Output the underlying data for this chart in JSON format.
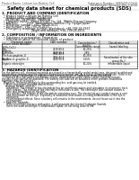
{
  "top_left_text": "Product Name: Lithium Ion Battery Cell",
  "top_right_line1": "Substance Number: SKKD40F-00610",
  "top_right_line2": "Established / Revision: Dec.7.2010",
  "title": "Safety data sheet for chemical products (SDS)",
  "section1_header": "1. PRODUCT AND COMPANY IDENTIFICATION",
  "section1_lines": [
    "  • Product name: Lithium Ion Battery Cell",
    "  • Product code: Cylindrical-type cell",
    "    SN1865A0, SN1865B0, SN1865A",
    "  • Company name:   Sanyo Electric Co., Ltd.  Mobile Energy Company",
    "  • Address:          2001  Kamiyashiro, Sumoto-City, Hyogo, Japan",
    "  • Telephone number:  +81-799-26-4111",
    "  • Fax number:  +81-799-26-4120",
    "  • Emergency telephone number (Weekdays): +81-799-26-3962",
    "                                 [Night and holidays]: +81-799-26-4101"
  ],
  "section2_header": "2. COMPOSITION / INFORMATION ON INGREDIENTS",
  "section2_sub": "  • Substance or preparation: Preparation",
  "section2_sub2": "  • Information about the chemical nature of product:",
  "table_col1_header": "Chemical name",
  "table_col2_header": "CAS number",
  "table_col3_header": "Concentration /\nConcentration range",
  "table_col4_header": "Classification and\nhazard labeling",
  "table_rows": [
    [
      "Lithium cobalt tantalate\n(LiMn₂CoO₂)",
      "-",
      "30-60%",
      "-"
    ],
    [
      "Iron",
      "7439-89-6",
      "10-25%",
      "-"
    ],
    [
      "Aluminum",
      "7429-90-5",
      "2-8%",
      "-"
    ],
    [
      "Graphite\n(Pitch as graphite-1)\n(Air-flow as graphite-1)",
      "7782-42-5\n7782-42-5",
      "10-25%",
      "-"
    ],
    [
      "Copper",
      "7440-50-8",
      "5-15%",
      "Sensitization of the skin\ngroup No.2"
    ],
    [
      "Organic electrolyte",
      "-",
      "10-20%",
      "Inflammable liquid"
    ]
  ],
  "section3_header": "3. HAZARDS IDENTIFICATION",
  "section3_para": [
    "For the battery cell, chemical materials are stored in a hermetically sealed metal case, designed to withstand",
    "temperature changes and mechanical shocks during normal use. As a result, during normal use, there is no",
    "physical danger of ignition or explosion and thermal danger of hazardous materials leakage.",
    "  If exposed to a fire, added mechanical shocks, decomposed, under electric short-circuit by misuse,",
    "the gas inside can/not be operated. The battery cell case will be breached of the portions, hazardous",
    "materials may be released.",
    "  Moreover, if heated strongly by the surrounding fire, acid gas may be emitted."
  ],
  "section3_bullet1": "  • Most important hazard and effects:",
  "section3_human": "    Human health effects:",
  "section3_human_lines": [
    "      Inhalation: The release of the electrolyte has an anesthesia action and stimulates in respiratory tract.",
    "      Skin contact: The release of the electrolyte stimulates a skin. The electrolyte skin contact causes a",
    "      sore and stimulation on the skin.",
    "      Eye contact: The release of the electrolyte stimulates eyes. The electrolyte eye contact causes a sore",
    "      and stimulation on the eye. Especially, a substance that causes a strong inflammation of the eye is",
    "      contained."
  ],
  "section3_env_lines": [
    "      Environmental effects: Since a battery cell remains in the environment, do not throw out it into the",
    "      environment."
  ],
  "section3_bullet2": "  • Specific hazards:",
  "section3_specific_lines": [
    "      If the electrolyte contacts with water, it will generate detrimental hydrogen fluoride.",
    "      Since the used electrolyte is inflammable liquid, do not bring close to fire."
  ]
}
